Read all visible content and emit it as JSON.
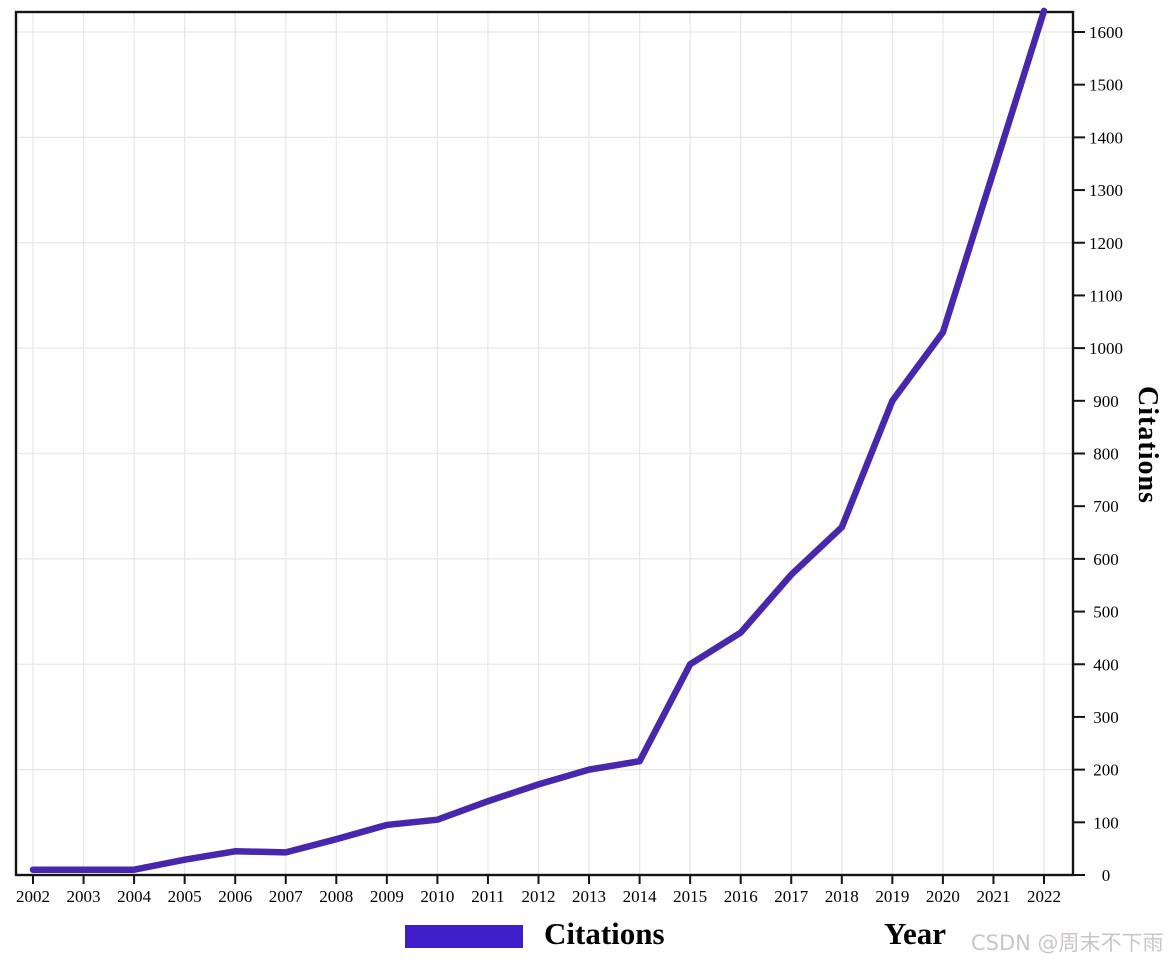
{
  "chart_data": {
    "type": "line",
    "title": "",
    "xlabel": "Year",
    "ylabel": "Citations",
    "x": [
      2002,
      2003,
      2004,
      2005,
      2006,
      2007,
      2008,
      2009,
      2010,
      2011,
      2012,
      2013,
      2014,
      2015,
      2016,
      2017,
      2018,
      2019,
      2020,
      2021,
      2022
    ],
    "series": [
      {
        "name": "Citations",
        "values": [
          10,
          10,
          10,
          29,
          45,
          43,
          68,
          95,
          105,
          140,
          172,
          200,
          216,
          400,
          460,
          570,
          660,
          900,
          1030,
          1335,
          1640
        ]
      }
    ],
    "ylim": [
      0,
      1600
    ],
    "ytick_step": 100,
    "grid_step": 200,
    "grid": "on",
    "legend_position": "bottom-center",
    "y_axis_side": "right",
    "line_color": "#4827ad",
    "legend_swatch_color": "#3e1ec9",
    "axis_color": "#141414",
    "grid_color": "#e8e6e6",
    "tick_label_color": "#000000"
  },
  "labels": {
    "legend_label": "Citations",
    "watermark": "CSDN @周末不下雨"
  }
}
